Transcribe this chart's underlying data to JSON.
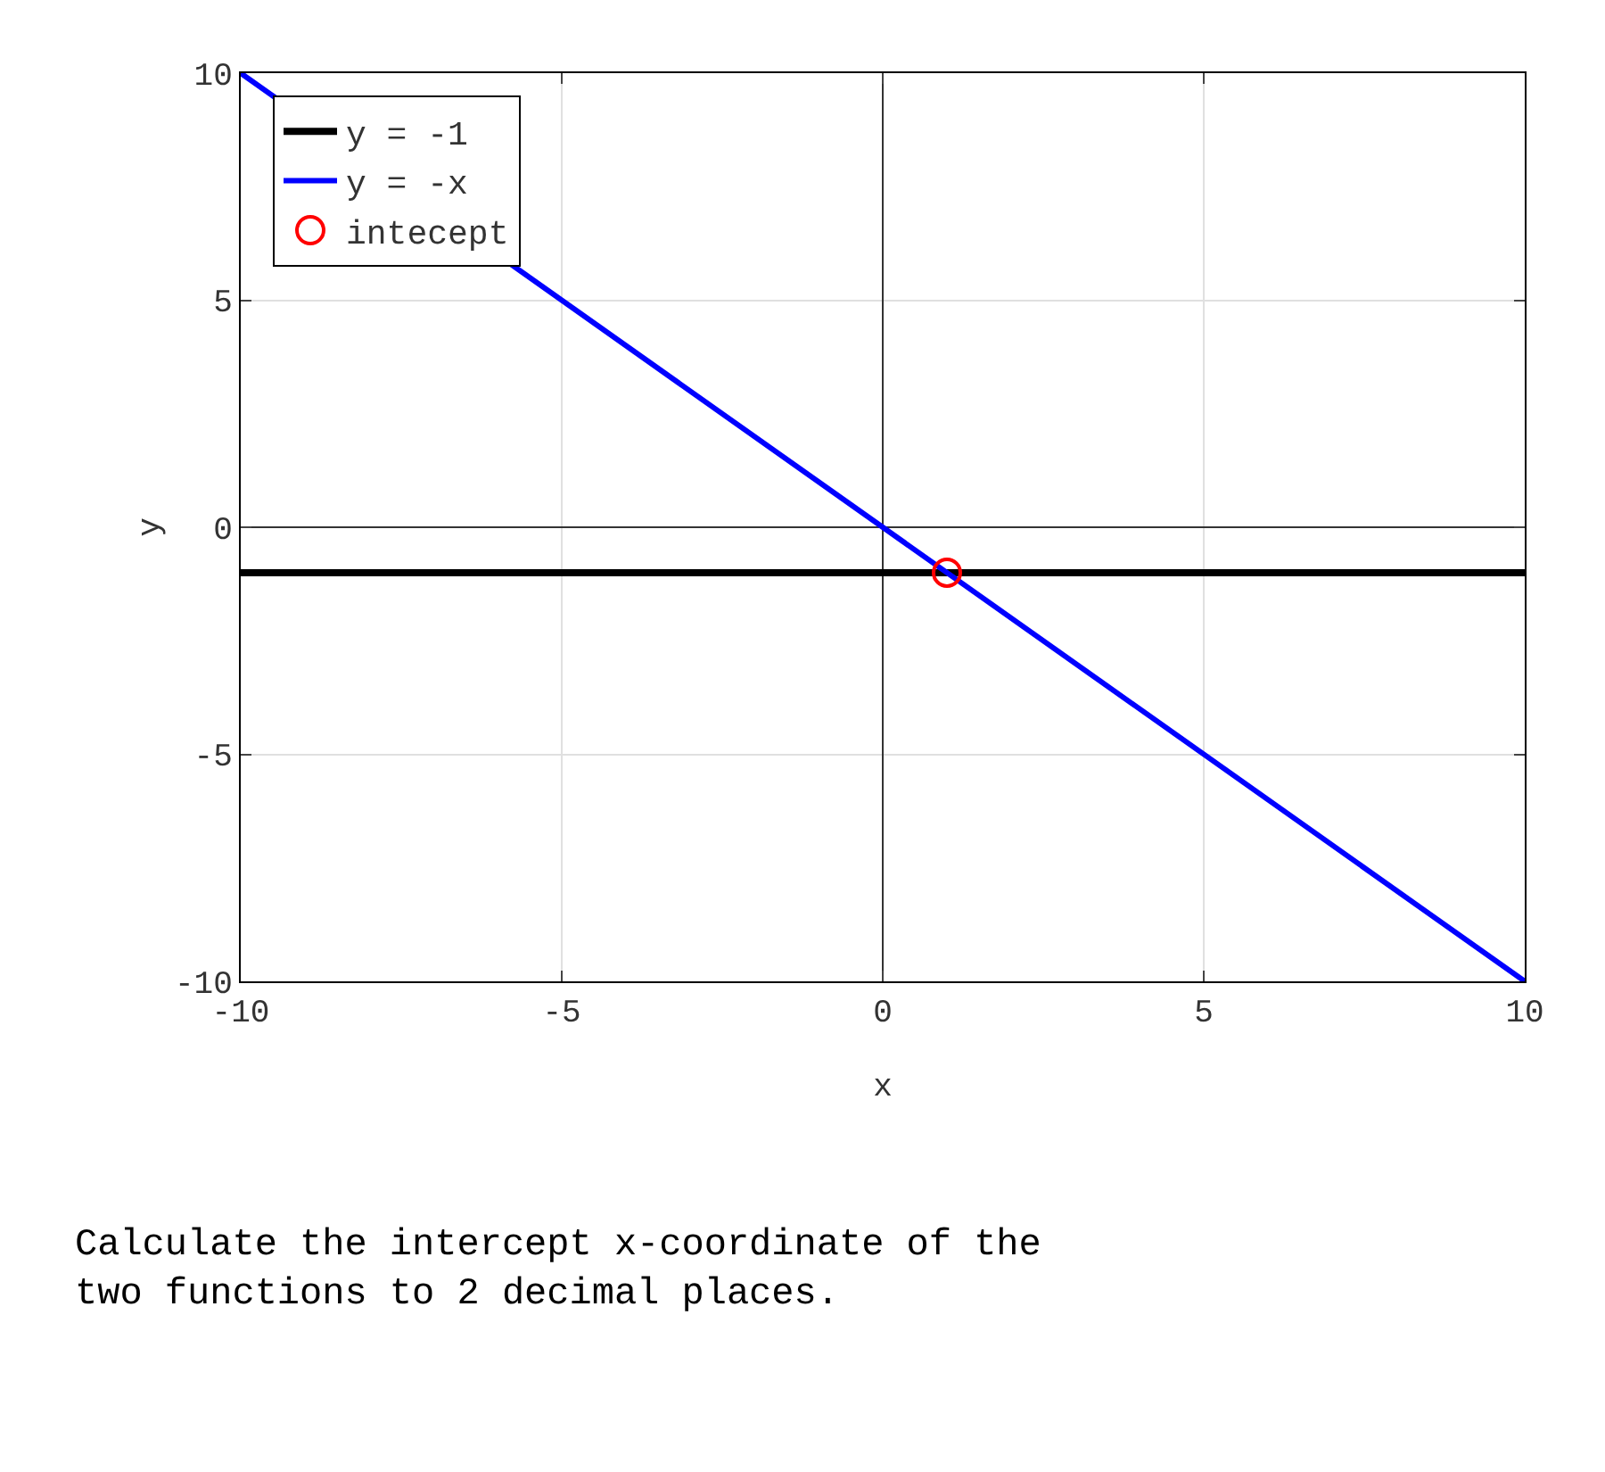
{
  "chart_data": {
    "type": "line",
    "xlabel": "x",
    "ylabel": "y",
    "xlim": [
      -10,
      10
    ],
    "ylim": [
      -10,
      10
    ],
    "xticks": [
      -10,
      -5,
      0,
      5,
      10
    ],
    "yticks": [
      -10,
      -5,
      0,
      5,
      10
    ],
    "grid": true,
    "legend": "top left",
    "series": [
      {
        "name": "y = -1",
        "type": "line",
        "color": "#000000",
        "x": [
          -10,
          10
        ],
        "values": [
          -1,
          -1
        ],
        "marker": "none"
      },
      {
        "name": "y = -x",
        "type": "line",
        "color": "#0000ff",
        "x": [
          -10,
          10
        ],
        "values": [
          10,
          -10
        ],
        "marker": "none"
      },
      {
        "name": "intecept",
        "type": "scatter",
        "color": "#ff0000",
        "x": [
          1
        ],
        "values": [
          -1
        ],
        "marker": "circle"
      }
    ],
    "annotations": [
      "Calculate the intercept x-coordinate of the\ntwo functions to 2 decimal places."
    ]
  }
}
